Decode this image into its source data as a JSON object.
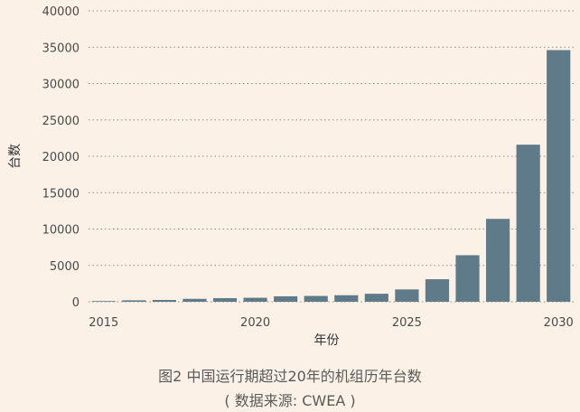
{
  "chart_data": {
    "type": "bar",
    "ylabel": "台数",
    "xlabel": "年份",
    "ylim": [
      0,
      40000
    ],
    "yticks": [
      0,
      5000,
      10000,
      15000,
      20000,
      25000,
      30000,
      35000,
      40000
    ],
    "xlim": [
      2014.5,
      2030.5
    ],
    "xticks": [
      2015,
      2020,
      2025,
      2030
    ],
    "x": [
      2015,
      2016,
      2017,
      2018,
      2019,
      2020,
      2021,
      2022,
      2023,
      2024,
      2025,
      2026,
      2027,
      2028,
      2029,
      2030
    ],
    "values": [
      100,
      200,
      250,
      400,
      500,
      550,
      750,
      800,
      900,
      1100,
      1700,
      3100,
      6400,
      11400,
      21600,
      34600
    ],
    "bar_color": "#5f7b89",
    "grid": "horizontal dotted"
  },
  "caption": {
    "title": "图2 中国运行期超过20年的机组历年台数",
    "source": "( 数据来源: CWEA )"
  }
}
